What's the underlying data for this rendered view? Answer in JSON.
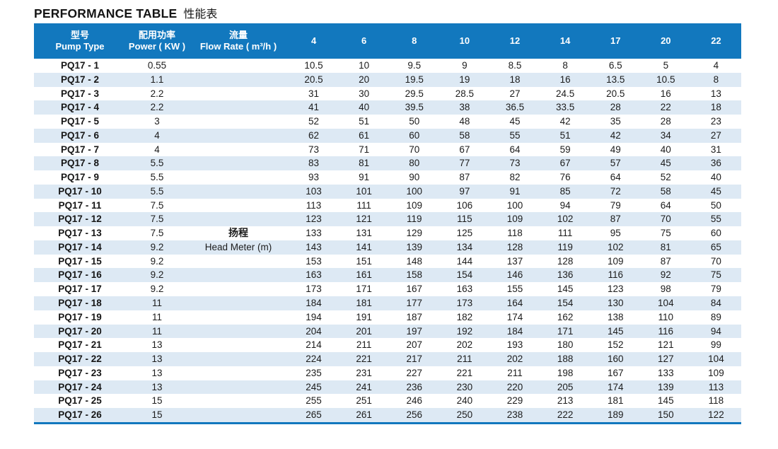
{
  "title": {
    "en": "PERFORMANCE TABLE",
    "zh": "性能表"
  },
  "colors": {
    "header_bg": "#1278be",
    "stripe_bg": "#dde9f4",
    "header_text": "#ffffff",
    "body_text": "#1c1c1c",
    "bottom_border": "#1278be"
  },
  "table": {
    "header": {
      "pump_type_zh": "型号",
      "pump_type_en": "Pump Type",
      "power_zh": "配用功率",
      "power_en": "Power ( KW )",
      "flow_zh": "流量",
      "flow_en": "Flow Rate ( m³/h )",
      "flow_columns": [
        "4",
        "6",
        "8",
        "10",
        "12",
        "14",
        "17",
        "20",
        "22"
      ]
    },
    "head_meter_label_zh": "扬程",
    "head_meter_label_en": "Head Meter (m)",
    "rows": [
      {
        "model": "PQ17 - 1",
        "power": "0.55",
        "flow_label": "",
        "heads": [
          "10.5",
          "10",
          "9.5",
          "9",
          "8.5",
          "8",
          "6.5",
          "5",
          "4"
        ]
      },
      {
        "model": "PQ17 - 2",
        "power": "1.1",
        "flow_label": "",
        "heads": [
          "20.5",
          "20",
          "19.5",
          "19",
          "18",
          "16",
          "13.5",
          "10.5",
          "8"
        ]
      },
      {
        "model": "PQ17 - 3",
        "power": "2.2",
        "flow_label": "",
        "heads": [
          "31",
          "30",
          "29.5",
          "28.5",
          "27",
          "24.5",
          "20.5",
          "16",
          "13"
        ]
      },
      {
        "model": "PQ17 - 4",
        "power": "2.2",
        "flow_label": "",
        "heads": [
          "41",
          "40",
          "39.5",
          "38",
          "36.5",
          "33.5",
          "28",
          "22",
          "18"
        ]
      },
      {
        "model": "PQ17 - 5",
        "power": "3",
        "flow_label": "",
        "heads": [
          "52",
          "51",
          "50",
          "48",
          "45",
          "42",
          "35",
          "28",
          "23"
        ]
      },
      {
        "model": "PQ17 - 6",
        "power": "4",
        "flow_label": "",
        "heads": [
          "62",
          "61",
          "60",
          "58",
          "55",
          "51",
          "42",
          "34",
          "27"
        ]
      },
      {
        "model": "PQ17 - 7",
        "power": "4",
        "flow_label": "",
        "heads": [
          "73",
          "71",
          "70",
          "67",
          "64",
          "59",
          "49",
          "40",
          "31"
        ]
      },
      {
        "model": "PQ17 - 8",
        "power": "5.5",
        "flow_label": "",
        "heads": [
          "83",
          "81",
          "80",
          "77",
          "73",
          "67",
          "57",
          "45",
          "36"
        ]
      },
      {
        "model": "PQ17 - 9",
        "power": "5.5",
        "flow_label": "",
        "heads": [
          "93",
          "91",
          "90",
          "87",
          "82",
          "76",
          "64",
          "52",
          "40"
        ]
      },
      {
        "model": "PQ17 - 10",
        "power": "5.5",
        "flow_label": "",
        "heads": [
          "103",
          "101",
          "100",
          "97",
          "91",
          "85",
          "72",
          "58",
          "45"
        ]
      },
      {
        "model": "PQ17 - 11",
        "power": "7.5",
        "flow_label": "",
        "heads": [
          "113",
          "111",
          "109",
          "106",
          "100",
          "94",
          "79",
          "64",
          "50"
        ]
      },
      {
        "model": "PQ17 - 12",
        "power": "7.5",
        "flow_label": "",
        "heads": [
          "123",
          "121",
          "119",
          "115",
          "109",
          "102",
          "87",
          "70",
          "55"
        ]
      },
      {
        "model": "PQ17 - 13",
        "power": "7.5",
        "flow_label": "扬程",
        "flow_label_bold": true,
        "heads": [
          "133",
          "131",
          "129",
          "125",
          "118",
          "111",
          "95",
          "75",
          "60"
        ]
      },
      {
        "model": "PQ17 - 14",
        "power": "9.2",
        "flow_label": "Head Meter (m)",
        "heads": [
          "143",
          "141",
          "139",
          "134",
          "128",
          "119",
          "102",
          "81",
          "65"
        ]
      },
      {
        "model": "PQ17 - 15",
        "power": "9.2",
        "flow_label": "",
        "heads": [
          "153",
          "151",
          "148",
          "144",
          "137",
          "128",
          "109",
          "87",
          "70"
        ]
      },
      {
        "model": "PQ17 - 16",
        "power": "9.2",
        "flow_label": "",
        "heads": [
          "163",
          "161",
          "158",
          "154",
          "146",
          "136",
          "116",
          "92",
          "75"
        ]
      },
      {
        "model": "PQ17 - 17",
        "power": "9.2",
        "flow_label": "",
        "heads": [
          "173",
          "171",
          "167",
          "163",
          "155",
          "145",
          "123",
          "98",
          "79"
        ]
      },
      {
        "model": "PQ17 - 18",
        "power": "11",
        "flow_label": "",
        "heads": [
          "184",
          "181",
          "177",
          "173",
          "164",
          "154",
          "130",
          "104",
          "84"
        ]
      },
      {
        "model": "PQ17 - 19",
        "power": "11",
        "flow_label": "",
        "heads": [
          "194",
          "191",
          "187",
          "182",
          "174",
          "162",
          "138",
          "110",
          "89"
        ]
      },
      {
        "model": "PQ17 - 20",
        "power": "11",
        "flow_label": "",
        "heads": [
          "204",
          "201",
          "197",
          "192",
          "184",
          "171",
          "145",
          "116",
          "94"
        ]
      },
      {
        "model": "PQ17 - 21",
        "power": "13",
        "flow_label": "",
        "heads": [
          "214",
          "211",
          "207",
          "202",
          "193",
          "180",
          "152",
          "121",
          "99"
        ]
      },
      {
        "model": "PQ17 - 22",
        "power": "13",
        "flow_label": "",
        "heads": [
          "224",
          "221",
          "217",
          "211",
          "202",
          "188",
          "160",
          "127",
          "104"
        ]
      },
      {
        "model": "PQ17 - 23",
        "power": "13",
        "flow_label": "",
        "heads": [
          "235",
          "231",
          "227",
          "221",
          "211",
          "198",
          "167",
          "133",
          "109"
        ]
      },
      {
        "model": "PQ17 - 24",
        "power": "13",
        "flow_label": "",
        "heads": [
          "245",
          "241",
          "236",
          "230",
          "220",
          "205",
          "174",
          "139",
          "113"
        ]
      },
      {
        "model": "PQ17 - 25",
        "power": "15",
        "flow_label": "",
        "heads": [
          "255",
          "251",
          "246",
          "240",
          "229",
          "213",
          "181",
          "145",
          "118"
        ]
      },
      {
        "model": "PQ17 - 26",
        "power": "15",
        "flow_label": "",
        "heads": [
          "265",
          "261",
          "256",
          "250",
          "238",
          "222",
          "189",
          "150",
          "122"
        ]
      }
    ]
  }
}
